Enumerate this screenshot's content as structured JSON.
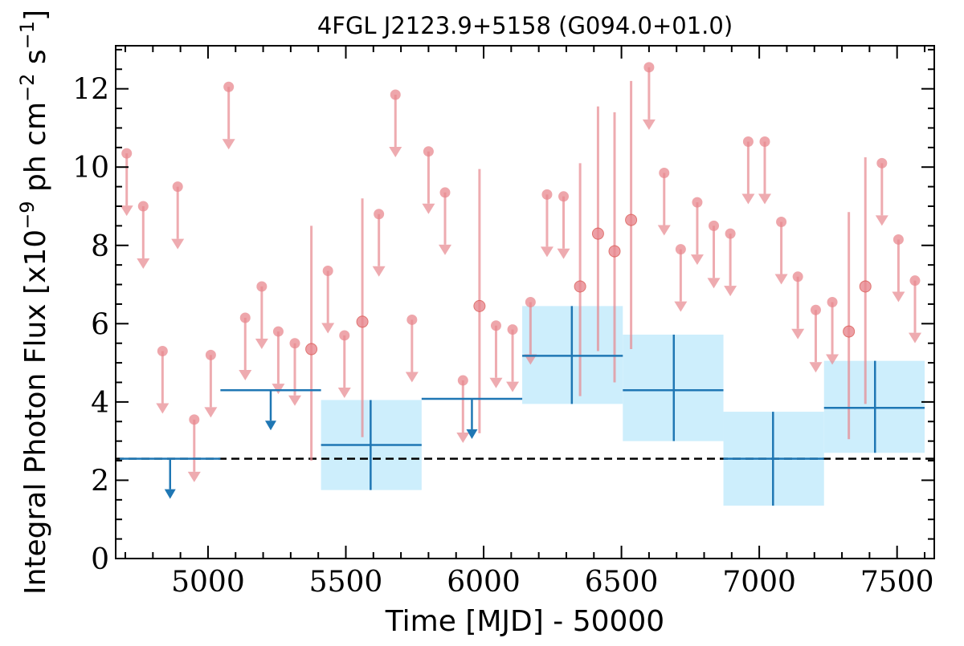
{
  "chart_data": {
    "type": "scatter",
    "title": "4FGL J2123.9+5158 (G094.0+01.0)",
    "xlabel": "Time [MJD] - 50000",
    "ylabel_prefix": "Integral Photon Flux [x10",
    "ylabel_exponent": "−9",
    "ylabel_mid": " ph cm",
    "ylabel_exponent2": "−2",
    "ylabel_mid2": " s",
    "ylabel_exponent3": "−1",
    "ylabel_suffix": "]",
    "xlim": [
      4665,
      7635
    ],
    "ylim": [
      0,
      13.1
    ],
    "x_ticks": [
      5000,
      5500,
      6000,
      6500,
      7000,
      7500
    ],
    "x_tick_labels": [
      "5000",
      "5500",
      "6000",
      "6500",
      "7000",
      "7500"
    ],
    "y_ticks": [
      0,
      2,
      4,
      6,
      8,
      10,
      12
    ],
    "y_tick_labels": [
      "0",
      "2",
      "4",
      "6",
      "8",
      "10",
      "12"
    ],
    "mean_flux": 2.55,
    "colors": {
      "short_bin": "#e8888f",
      "long_bin": "#1f77b4",
      "error_band": "#cdeefc",
      "mean_line": "#000000"
    },
    "short_bin_upper_limits": [
      {
        "x": 4705,
        "y": 10.35
      },
      {
        "x": 4765,
        "y": 9.0
      },
      {
        "x": 4835,
        "y": 5.3
      },
      {
        "x": 4890,
        "y": 9.5
      },
      {
        "x": 4950,
        "y": 3.55
      },
      {
        "x": 5010,
        "y": 5.2
      },
      {
        "x": 5075,
        "y": 12.05
      },
      {
        "x": 5135,
        "y": 6.15
      },
      {
        "x": 5195,
        "y": 6.95
      },
      {
        "x": 5255,
        "y": 5.8
      },
      {
        "x": 5315,
        "y": 5.5
      },
      {
        "x": 5435,
        "y": 7.35
      },
      {
        "x": 5495,
        "y": 5.7
      },
      {
        "x": 5620,
        "y": 8.8
      },
      {
        "x": 5680,
        "y": 11.85
      },
      {
        "x": 5740,
        "y": 6.1
      },
      {
        "x": 5800,
        "y": 10.4
      },
      {
        "x": 5860,
        "y": 9.35
      },
      {
        "x": 5925,
        "y": 4.55
      },
      {
        "x": 6045,
        "y": 5.95
      },
      {
        "x": 6105,
        "y": 5.85
      },
      {
        "x": 6170,
        "y": 6.55
      },
      {
        "x": 6230,
        "y": 9.3
      },
      {
        "x": 6290,
        "y": 9.25
      },
      {
        "x": 6600,
        "y": 12.55
      },
      {
        "x": 6655,
        "y": 9.85
      },
      {
        "x": 6715,
        "y": 7.9
      },
      {
        "x": 6775,
        "y": 9.1
      },
      {
        "x": 6835,
        "y": 8.5
      },
      {
        "x": 6895,
        "y": 8.3
      },
      {
        "x": 6960,
        "y": 10.65
      },
      {
        "x": 7020,
        "y": 10.65
      },
      {
        "x": 7080,
        "y": 8.6
      },
      {
        "x": 7140,
        "y": 7.2
      },
      {
        "x": 7205,
        "y": 6.35
      },
      {
        "x": 7265,
        "y": 6.55
      },
      {
        "x": 7445,
        "y": 10.1
      },
      {
        "x": 7505,
        "y": 8.15
      },
      {
        "x": 7565,
        "y": 7.1
      }
    ],
    "short_bin_detections": [
      {
        "x": 5375,
        "y": 5.35,
        "ylo": 2.5,
        "yhi": 8.5
      },
      {
        "x": 5560,
        "y": 6.05,
        "ylo": 3.1,
        "yhi": 9.2
      },
      {
        "x": 5985,
        "y": 6.45,
        "ylo": 3.2,
        "yhi": 9.95
      },
      {
        "x": 6350,
        "y": 6.95,
        "ylo": 4.15,
        "yhi": 10.1
      },
      {
        "x": 6415,
        "y": 8.3,
        "ylo": 5.3,
        "yhi": 11.55
      },
      {
        "x": 6475,
        "y": 7.85,
        "ylo": 4.5,
        "yhi": 11.4
      },
      {
        "x": 6535,
        "y": 8.65,
        "ylo": 5.35,
        "yhi": 12.2
      },
      {
        "x": 7325,
        "y": 5.8,
        "ylo": 3.05,
        "yhi": 8.85
      },
      {
        "x": 7385,
        "y": 6.95,
        "ylo": 3.95,
        "yhi": 10.25
      }
    ],
    "long_bin_upper_limits": [
      {
        "x0": 4680,
        "x1": 5045,
        "y": 2.55
      },
      {
        "x0": 5045,
        "x1": 5410,
        "y": 4.3
      },
      {
        "x0": 5775,
        "x1": 6140,
        "y": 4.08
      }
    ],
    "long_bin_detections": [
      {
        "x0": 5410,
        "x1": 5775,
        "x": 5590,
        "y": 2.9,
        "ylo": 1.75,
        "yhi": 4.05
      },
      {
        "x0": 6140,
        "x1": 6505,
        "x": 6320,
        "y": 5.18,
        "ylo": 3.95,
        "yhi": 6.45
      },
      {
        "x0": 6505,
        "x1": 6870,
        "x": 6690,
        "y": 4.3,
        "ylo": 3.0,
        "yhi": 5.72
      },
      {
        "x0": 6870,
        "x1": 7235,
        "x": 7050,
        "y": 2.55,
        "ylo": 1.35,
        "yhi": 3.75
      },
      {
        "x0": 7235,
        "x1": 7600,
        "x": 7420,
        "y": 3.85,
        "ylo": 2.7,
        "yhi": 5.05
      }
    ]
  }
}
